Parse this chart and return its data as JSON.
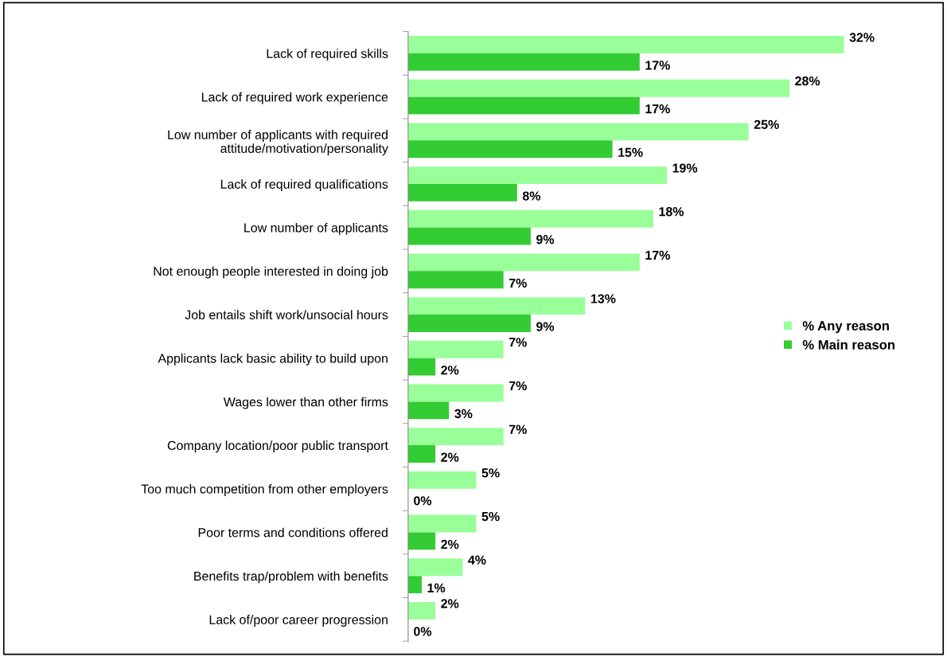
{
  "chart_data": {
    "type": "bar",
    "orientation": "horizontal",
    "legend": "right",
    "grid": false,
    "categories": [
      "Lack of required skills",
      "Lack of required work experience",
      "Low number of applicants with required\nattitude/motivation/personality",
      "Lack of required qualifications",
      "Low number of applicants",
      "Not enough people interested in doing job",
      "Job entails shift work/unsocial hours",
      "Applicants lack basic ability to build upon",
      "Wages lower than other firms",
      "Company location/poor public transport",
      "Too much competition from other employers",
      "Poor terms and conditions offered",
      "Benefits trap/problem with benefits",
      "Lack of/poor career progression"
    ],
    "series": [
      {
        "name": "% Any reason",
        "color": "#99ff99",
        "values": [
          32,
          28,
          25,
          19,
          18,
          17,
          13,
          7,
          7,
          7,
          5,
          5,
          4,
          2
        ],
        "value_labels": [
          "32%",
          "28%",
          "25%",
          "19%",
          "18%",
          "17%",
          "13%",
          "7%",
          "7%",
          "7%",
          "5%",
          "5%",
          "4%",
          "2%"
        ]
      },
      {
        "name": "% Main reason",
        "color": "#33cc33",
        "values": [
          17,
          17,
          15,
          8,
          9,
          7,
          9,
          2,
          3,
          2,
          0,
          2,
          1,
          0
        ],
        "value_labels": [
          "17%",
          "17%",
          "15%",
          "8%",
          "9%",
          "7%",
          "9%",
          "2%",
          "3%",
          "2%",
          "0%",
          "2%",
          "1%",
          "0%"
        ]
      }
    ]
  }
}
